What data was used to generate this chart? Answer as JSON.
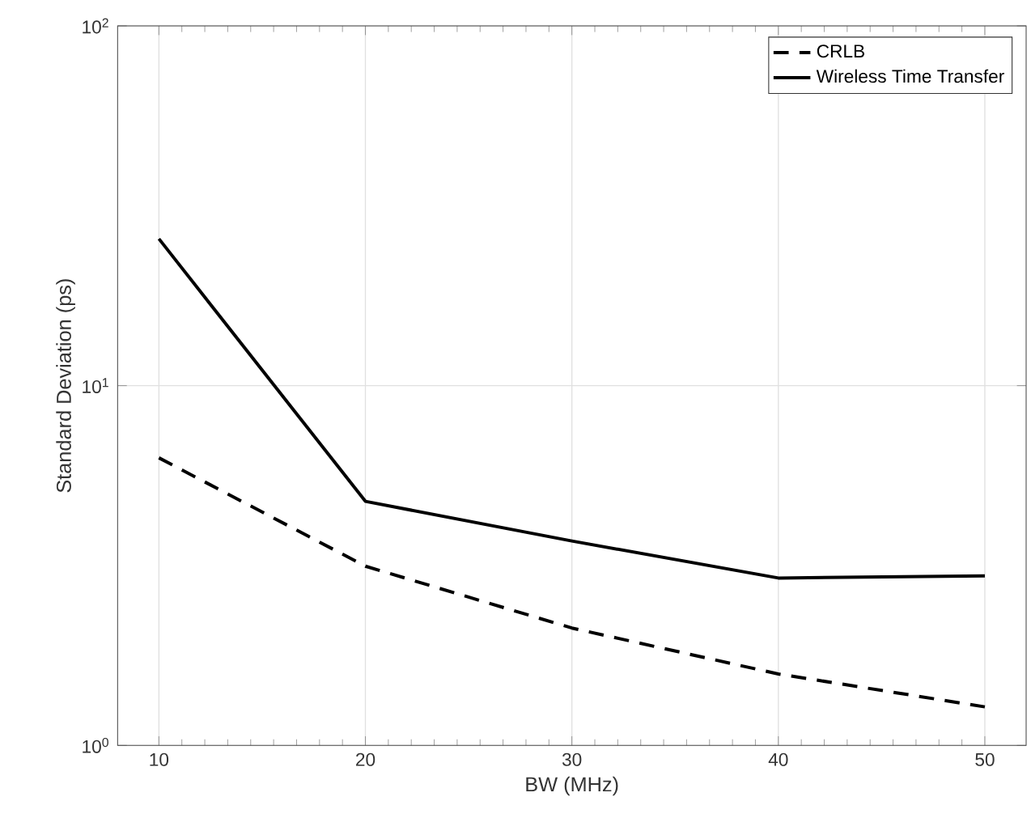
{
  "chart_data": {
    "type": "line",
    "xlabel": "BW (MHz)",
    "ylabel": "Standard Deviation (ps)",
    "log": "y",
    "grid": true,
    "legend": "top right",
    "x": [
      10,
      20,
      30,
      40,
      50
    ],
    "series": [
      {
        "name": "CRLB",
        "color": "#000000",
        "line_style": "dashed",
        "values": [
          6.3,
          3.15,
          2.12,
          1.58,
          1.28
        ]
      },
      {
        "name": "Wireless Time Transfer",
        "color": "#000000",
        "line_style": "solid",
        "values": [
          25.6,
          4.77,
          3.7,
          2.92,
          2.96
        ]
      }
    ],
    "xlim": [
      8,
      52
    ],
    "xticks": [
      10,
      20,
      30,
      40,
      50
    ],
    "ylim": [
      1,
      100
    ],
    "yticks": [
      {
        "value": 1,
        "label": "10$^{0}$"
      },
      {
        "value": 10,
        "label": "10$^{1}$"
      },
      {
        "value": 100,
        "label": "10$^{2}$"
      }
    ]
  }
}
